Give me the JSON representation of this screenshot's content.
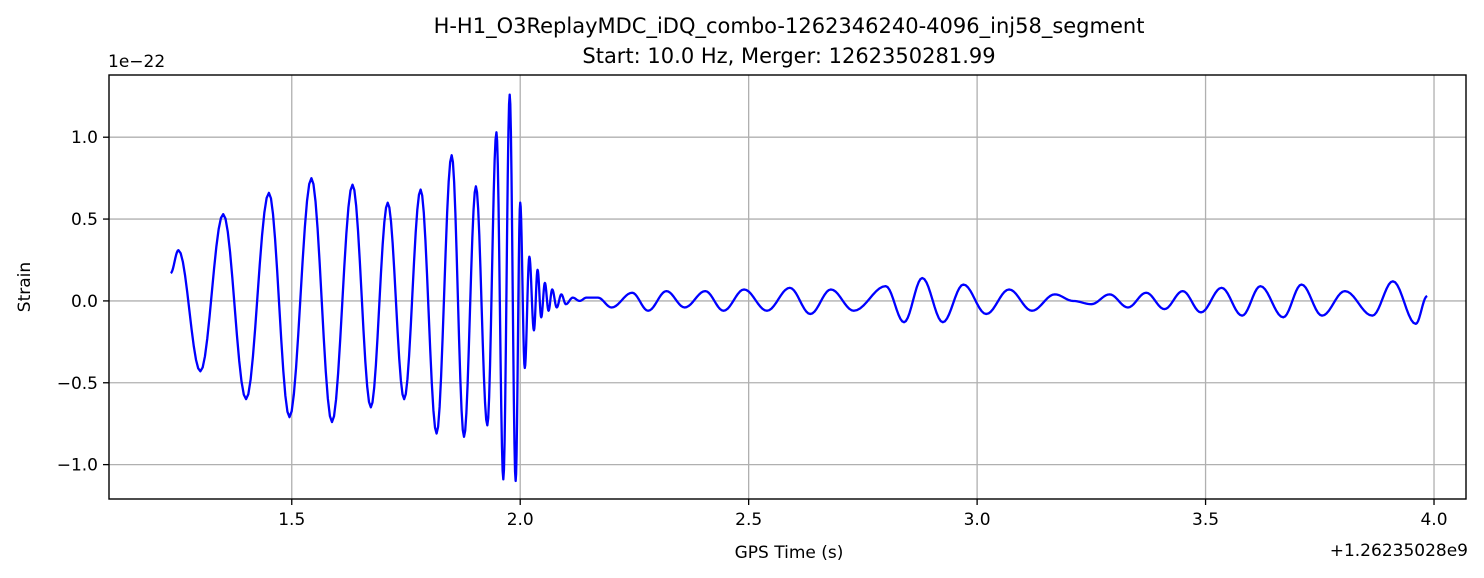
{
  "chart_data": {
    "type": "line",
    "title": "H-H1_O3ReplayMDC_iDQ_combo-1262346240-4096_inj58_segment",
    "subtitle": "Start: 10.0 Hz, Merger: 1262350281.99",
    "xlabel": "GPS Time (s)",
    "ylabel": "Strain",
    "x_offset_label": "+1.26235028e9",
    "y_scale_label": "1e−22",
    "xlim": [
      1.1,
      4.07
    ],
    "ylim": [
      -1.21,
      1.38
    ],
    "x_ticks": [
      1.5,
      2.0,
      2.5,
      3.0,
      3.5,
      4.0
    ],
    "x_tick_labels": [
      "1.5",
      "2.0",
      "2.5",
      "3.0",
      "3.5",
      "4.0"
    ],
    "y_ticks": [
      -1.0,
      -0.5,
      0.0,
      0.5,
      1.0
    ],
    "y_tick_labels": [
      "−1.0",
      "−0.5",
      "0.0",
      "0.5",
      "1.0"
    ],
    "grid": true,
    "series": [
      {
        "color": "#0000ff",
        "extrema": [
          [
            1.235,
            0.17
          ],
          [
            1.252,
            0.31
          ],
          [
            1.3,
            -0.43
          ],
          [
            1.35,
            0.53
          ],
          [
            1.4,
            -0.6
          ],
          [
            1.45,
            0.66
          ],
          [
            1.495,
            -0.71
          ],
          [
            1.543,
            0.75
          ],
          [
            1.588,
            -0.74
          ],
          [
            1.633,
            0.71
          ],
          [
            1.673,
            -0.65
          ],
          [
            1.71,
            0.6
          ],
          [
            1.746,
            -0.6
          ],
          [
            1.782,
            0.68
          ],
          [
            1.817,
            -0.81
          ],
          [
            1.85,
            0.89
          ],
          [
            1.877,
            -0.83
          ],
          [
            1.903,
            0.7
          ],
          [
            1.928,
            -0.76
          ],
          [
            1.948,
            1.03
          ],
          [
            1.963,
            -1.09
          ],
          [
            1.977,
            1.26
          ],
          [
            1.99,
            -1.1
          ],
          [
            2.0,
            0.6
          ],
          [
            2.01,
            -0.41
          ],
          [
            2.02,
            0.27
          ],
          [
            2.03,
            -0.18
          ],
          [
            2.038,
            0.19
          ],
          [
            2.046,
            -0.1
          ],
          [
            2.054,
            0.11
          ],
          [
            2.062,
            -0.06
          ],
          [
            2.07,
            0.07
          ],
          [
            2.08,
            -0.04
          ],
          [
            2.09,
            0.04
          ],
          [
            2.1,
            -0.02
          ],
          [
            2.115,
            0.02
          ],
          [
            2.13,
            0.0
          ],
          [
            2.145,
            0.02
          ],
          [
            2.17,
            0.02
          ],
          [
            2.2,
            -0.04
          ],
          [
            2.245,
            0.05
          ],
          [
            2.28,
            -0.06
          ],
          [
            2.32,
            0.06
          ],
          [
            2.36,
            -0.04
          ],
          [
            2.405,
            0.06
          ],
          [
            2.445,
            -0.06
          ],
          [
            2.49,
            0.07
          ],
          [
            2.54,
            -0.06
          ],
          [
            2.59,
            0.08
          ],
          [
            2.635,
            -0.08
          ],
          [
            2.68,
            0.07
          ],
          [
            2.73,
            -0.06
          ],
          [
            2.8,
            0.09
          ],
          [
            2.84,
            -0.13
          ],
          [
            2.88,
            0.14
          ],
          [
            2.925,
            -0.13
          ],
          [
            2.97,
            0.1
          ],
          [
            3.02,
            -0.08
          ],
          [
            3.07,
            0.07
          ],
          [
            3.12,
            -0.06
          ],
          [
            3.17,
            0.04
          ],
          [
            3.21,
            0.0
          ],
          [
            3.25,
            -0.02
          ],
          [
            3.29,
            0.04
          ],
          [
            3.33,
            -0.04
          ],
          [
            3.37,
            0.05
          ],
          [
            3.41,
            -0.05
          ],
          [
            3.45,
            0.06
          ],
          [
            3.49,
            -0.07
          ],
          [
            3.535,
            0.08
          ],
          [
            3.58,
            -0.09
          ],
          [
            3.62,
            0.09
          ],
          [
            3.67,
            -0.1
          ],
          [
            3.71,
            0.1
          ],
          [
            3.755,
            -0.09
          ],
          [
            3.805,
            0.06
          ],
          [
            3.865,
            -0.09
          ],
          [
            3.91,
            0.12
          ],
          [
            3.96,
            -0.14
          ],
          [
            3.985,
            0.03
          ]
        ]
      }
    ]
  }
}
